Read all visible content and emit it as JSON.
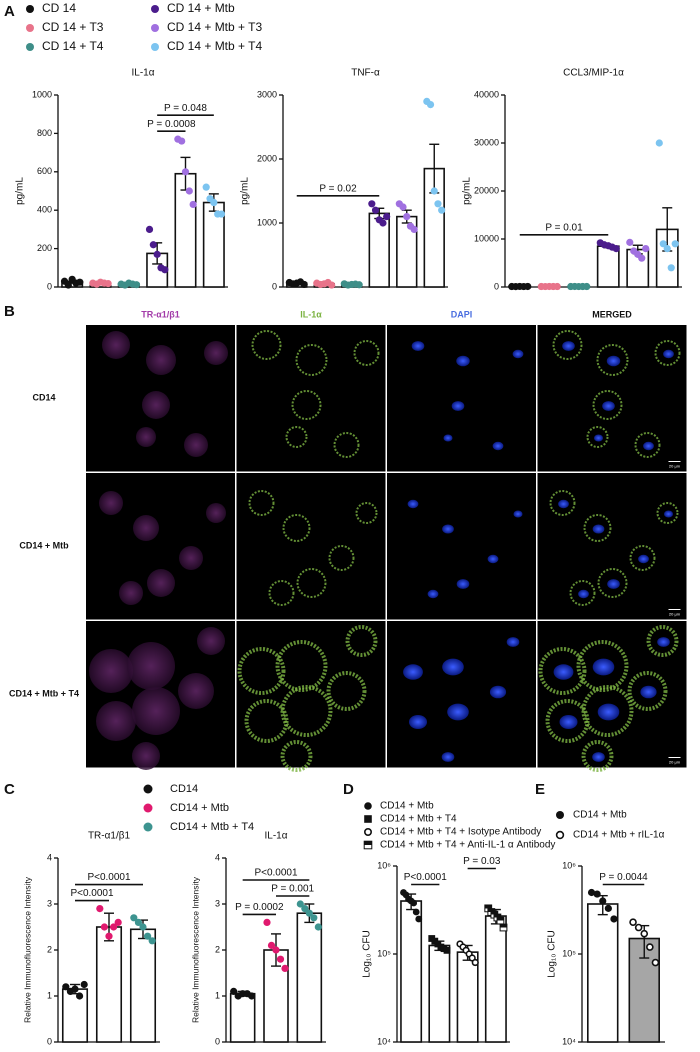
{
  "chart_data": [
    {
      "type": "bar",
      "panel": "A",
      "title": "IL-1α",
      "ylabel": "pg/mL",
      "legend": [
        {
          "label": "CD 14",
          "color": "#111111"
        },
        {
          "label": "CD 14 + T3",
          "color": "#e8738a"
        },
        {
          "label": "CD 14 + T4",
          "color": "#3e8e88"
        },
        {
          "label": "CD 14 + Mtb",
          "color": "#4b1c8c"
        },
        {
          "label": "CD 14 + Mtb + T3",
          "color": "#a070e0"
        },
        {
          "label": "CD 14 + Mtb + T4",
          "color": "#7cc4f0"
        }
      ],
      "categories": [
        null,
        null,
        null,
        null,
        null,
        null
      ],
      "values": [
        25,
        20,
        15,
        175,
        590,
        440
      ],
      "errors": [
        5,
        5,
        4,
        55,
        85,
        45
      ],
      "points": [
        [
          30,
          10,
          40,
          20,
          25
        ],
        [
          20,
          15,
          25,
          20,
          18
        ],
        [
          15,
          10,
          20,
          15,
          12
        ],
        [
          300,
          220,
          170,
          100,
          90
        ],
        [
          770,
          760,
          600,
          500,
          430
        ],
        [
          520,
          460,
          440,
          380,
          380
        ]
      ],
      "point_colors": [
        "#111111",
        "#e8738a",
        "#3e8e88",
        "#4b1c8c",
        "#a070e0",
        "#7cc4f0"
      ],
      "bar_colors": [
        "#ffffff",
        "#ffffff",
        "#ffffff",
        "#ffffff",
        "#ffffff",
        "#ffffff"
      ],
      "ylim": [
        0,
        1000
      ],
      "yticks": [
        0,
        200,
        400,
        600,
        800,
        1000
      ],
      "annotations": [
        {
          "label": "P = 0.0008",
          "from": 3,
          "to": 4
        },
        {
          "label": "P = 0.048",
          "from": 3,
          "to": 5
        }
      ]
    },
    {
      "type": "bar",
      "title": "TNF-α",
      "ylabel": "pg/mL",
      "categories": [
        null,
        null,
        null,
        null,
        null,
        null
      ],
      "values": [
        60,
        50,
        40,
        1150,
        1100,
        1850
      ],
      "errors": [
        10,
        10,
        10,
        80,
        100,
        380
      ],
      "points": [
        [
          70,
          50,
          60,
          80,
          40
        ],
        [
          60,
          40,
          50,
          70,
          30
        ],
        [
          50,
          30,
          40,
          45,
          35
        ],
        [
          1300,
          1200,
          1050,
          1000,
          1100
        ],
        [
          1300,
          1250,
          1100,
          950,
          900
        ],
        [
          2900,
          2850,
          1500,
          1300,
          1200
        ]
      ],
      "point_colors": [
        "#111111",
        "#e8738a",
        "#3e8e88",
        "#4b1c8c",
        "#a070e0",
        "#7cc4f0"
      ],
      "bar_colors": [
        "#ffffff",
        "#ffffff",
        "#ffffff",
        "#ffffff",
        "#ffffff",
        "#ffffff"
      ],
      "ylim": [
        0,
        3000
      ],
      "yticks": [
        0,
        1000,
        2000,
        3000
      ],
      "annotations": [
        {
          "label": "P = 0.02",
          "from": 0,
          "to": 3
        }
      ]
    },
    {
      "type": "bar",
      "title": "CCL3/MIP-1α",
      "ylabel": "pg/mL",
      "categories": [
        null,
        null,
        null,
        null,
        null,
        null
      ],
      "values": [
        100,
        100,
        100,
        8500,
        7800,
        12000
      ],
      "errors": [
        50,
        50,
        50,
        300,
        900,
        4500
      ],
      "points": [
        [
          100,
          80,
          120,
          90,
          110
        ],
        [
          100,
          90,
          110,
          100,
          100
        ],
        [
          100,
          110,
          90,
          100,
          100
        ],
        [
          9200,
          8800,
          8600,
          8300,
          8000
        ],
        [
          9300,
          7500,
          6800,
          6000,
          8000
        ],
        [
          30000,
          9000,
          8000,
          4000,
          9000
        ]
      ],
      "point_colors": [
        "#111111",
        "#e8738a",
        "#3e8e88",
        "#4b1c8c",
        "#a070e0",
        "#7cc4f0"
      ],
      "bar_colors": [
        "#ffffff",
        "#ffffff",
        "#ffffff",
        "#ffffff",
        "#ffffff",
        "#ffffff"
      ],
      "ylim": [
        0,
        40000
      ],
      "yticks": [
        0,
        10000,
        20000,
        30000,
        40000
      ],
      "annotations": [
        {
          "label": "P = 0.01",
          "from": 0,
          "to": 3
        }
      ]
    },
    {
      "type": "bar",
      "panel": "C",
      "title": "TR-α1/β1",
      "ylabel": "Relative Immunofluorescence Intensity",
      "legend": [
        {
          "label": "CD14",
          "color": "#111111"
        },
        {
          "label": "CD14 + Mtb",
          "color": "#e0196e"
        },
        {
          "label": "CD14 + Mtb + T4",
          "color": "#3d9490"
        }
      ],
      "categories": [
        null,
        null,
        null
      ],
      "values": [
        1.15,
        2.5,
        2.45
      ],
      "errors": [
        0.1,
        0.3,
        0.2
      ],
      "points": [
        [
          1.2,
          1.1,
          1.15,
          1.0,
          1.25
        ],
        [
          2.9,
          2.5,
          2.3,
          2.5,
          2.6
        ],
        [
          2.7,
          2.6,
          2.5,
          2.3,
          2.2
        ]
      ],
      "point_colors": [
        "#111111",
        "#e0196e",
        "#3d9490"
      ],
      "bar_colors": [
        "#ffffff",
        "#ffffff",
        "#ffffff"
      ],
      "ylim": [
        0,
        4
      ],
      "yticks": [
        0,
        1,
        2,
        3,
        4
      ],
      "annotations": [
        {
          "label": "P<0.0001",
          "from": 0,
          "to": 1
        },
        {
          "label": "P<0.0001",
          "from": 0,
          "to": 2
        }
      ]
    },
    {
      "type": "bar",
      "title": "IL-1α",
      "ylabel": "Relative Immunofluorescence Intensity",
      "categories": [
        null,
        null,
        null
      ],
      "values": [
        1.05,
        2.0,
        2.8
      ],
      "errors": [
        0.05,
        0.35,
        0.2
      ],
      "points": [
        [
          1.1,
          1.0,
          1.05,
          1.05,
          1.0
        ],
        [
          2.6,
          2.1,
          2.0,
          1.8,
          1.6
        ],
        [
          3.0,
          2.9,
          2.8,
          2.7,
          2.5
        ]
      ],
      "point_colors": [
        "#111111",
        "#e0196e",
        "#3d9490"
      ],
      "bar_colors": [
        "#ffffff",
        "#ffffff",
        "#ffffff"
      ],
      "ylim": [
        0,
        4
      ],
      "yticks": [
        0,
        1,
        2,
        3,
        4
      ],
      "annotations": [
        {
          "label": "P = 0.0002",
          "from": 0,
          "to": 1
        },
        {
          "label": "P = 0.001",
          "from": 1,
          "to": 2
        },
        {
          "label": "P<0.0001",
          "from": 0,
          "to": 2
        }
      ]
    },
    {
      "type": "bar",
      "panel": "D",
      "ylabel": "Log₁₀ CFU",
      "log_y": true,
      "legend": [
        {
          "label": "CD14 + Mtb",
          "marker": "circle"
        },
        {
          "label": "CD14 + Mtb + T4",
          "marker": "square"
        },
        {
          "label": "CD14 + Mtb + T4 + Isotype Antibody",
          "marker": "open-circle"
        },
        {
          "label": "CD14 + Mtb + T4 + Anti-IL-1 α Antibody",
          "marker": "half-square"
        }
      ],
      "categories": [
        null,
        null,
        null,
        null
      ],
      "values": [
        400000,
        125000,
        105000,
        270000
      ],
      "errors": [
        80000,
        15000,
        20000,
        50000
      ],
      "points": [
        [
          500000,
          470000,
          420000,
          400000,
          380000,
          300000,
          250000
        ],
        [
          150000,
          140000,
          130000,
          120000,
          115000,
          110000
        ],
        [
          130000,
          120000,
          110000,
          100000,
          90000,
          80000
        ],
        [
          330000,
          300000,
          280000,
          260000,
          240000,
          200000
        ]
      ],
      "markers": [
        "circle",
        "square",
        "open-circle",
        "half-square"
      ],
      "point_colors": [
        "#111111",
        "#111111",
        "#111111",
        "#111111"
      ],
      "bar_colors": [
        "#ffffff",
        "#ffffff",
        "#ffffff",
        "#ffffff"
      ],
      "ylim": [
        10000,
        1000000
      ],
      "yticks": [
        {
          "value": 10000,
          "label": "10⁴"
        },
        {
          "value": 100000,
          "label": "10⁵"
        },
        {
          "value": 1000000,
          "label": "10⁶"
        }
      ],
      "annotations": [
        {
          "label": "P<0.0001",
          "from": 0,
          "to": 1
        },
        {
          "label": "P = 0.03",
          "from": 2,
          "to": 3
        }
      ]
    },
    {
      "type": "bar",
      "panel": "E",
      "ylabel": "Log₁₀ CFU",
      "log_y": true,
      "legend": [
        {
          "label": "CD14 + Mtb",
          "marker": "circle"
        },
        {
          "label": "CD14 + Mtb + rIL-1α",
          "marker": "open-circle"
        }
      ],
      "categories": [
        null,
        null
      ],
      "values": [
        370000,
        150000
      ],
      "errors": [
        90000,
        60000
      ],
      "points": [
        [
          500000,
          480000,
          400000,
          330000,
          250000
        ],
        [
          230000,
          200000,
          170000,
          120000,
          80000
        ]
      ],
      "markers": [
        "circle",
        "open-circle"
      ],
      "point_colors": [
        "#111111",
        "#111111"
      ],
      "bar_colors": [
        "#ffffff",
        "#a6a6a6"
      ],
      "ylim": [
        10000,
        1000000
      ],
      "yticks": [
        {
          "value": 10000,
          "label": "10⁴"
        },
        {
          "value": 100000,
          "label": "10⁵"
        },
        {
          "value": 1000000,
          "label": "10⁶"
        }
      ],
      "annotations": [
        {
          "label": "P = 0.0044",
          "from": 0,
          "to": 1
        }
      ]
    }
  ],
  "micrograph": {
    "panel": "B",
    "columns": [
      {
        "label": "TR-α1/β1",
        "color": "#a23aa8"
      },
      {
        "label": "IL-1α",
        "color": "#7cb342"
      },
      {
        "label": "DAPI",
        "color": "#4a6ee0"
      },
      {
        "label": "MERGED",
        "color": "#111111"
      }
    ],
    "rows": [
      "CD14",
      "CD14 + Mtb",
      "CD14 + Mtb + T4"
    ],
    "scale_bar": "20 µm"
  }
}
